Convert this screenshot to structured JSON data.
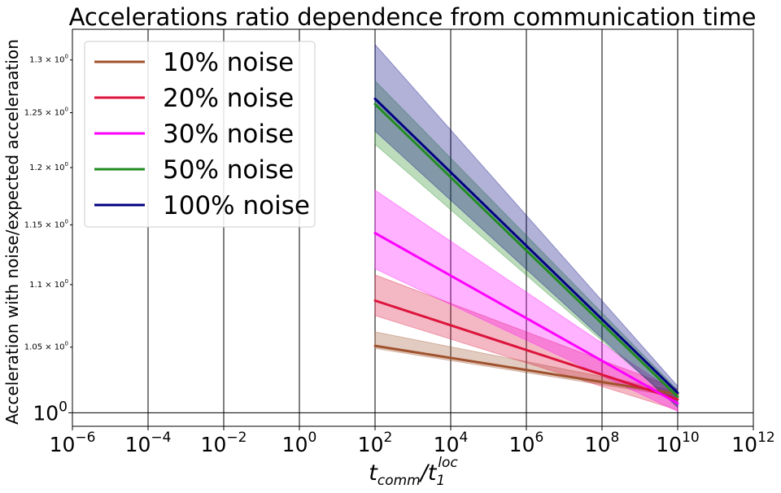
{
  "chart_data": {
    "type": "line",
    "title": "Accelerations ratio dependence from communication time",
    "ylabel": "Acceleration with noise/expected acceleraation",
    "xlabel": {
      "base": "t",
      "sub1": "comm",
      "slash": "/t",
      "sub2": "1",
      "sup": "loc"
    },
    "x_scale": "log",
    "y_scale": "log",
    "xlim_exp": [
      -6,
      12
    ],
    "ylim": [
      0.99,
      1.33
    ],
    "x_ticks": [
      {
        "base": "10",
        "exp": "−6",
        "value": -6
      },
      {
        "base": "10",
        "exp": "−4",
        "value": -4
      },
      {
        "base": "10",
        "exp": "−2",
        "value": -2
      },
      {
        "base": "10",
        "exp": "0",
        "value": 0
      },
      {
        "base": "10",
        "exp": "2",
        "value": 2
      },
      {
        "base": "10",
        "exp": "4",
        "value": 4
      },
      {
        "base": "10",
        "exp": "6",
        "value": 6
      },
      {
        "base": "10",
        "exp": "8",
        "value": 8
      },
      {
        "base": "10",
        "exp": "10",
        "value": 10
      },
      {
        "base": "10",
        "exp": "12",
        "value": 12
      }
    ],
    "y_ticks": [
      {
        "mant": "1.3 × 10",
        "exp": "0",
        "value": 1.3
      },
      {
        "mant": "1.25 × 10",
        "exp": "0",
        "value": 1.25
      },
      {
        "mant": "1.2 × 10",
        "exp": "0",
        "value": 1.2
      },
      {
        "mant": "1.15 × 10",
        "exp": "0",
        "value": 1.15
      },
      {
        "mant": "1.1 × 10",
        "exp": "0",
        "value": 1.1
      },
      {
        "mant": "1.05 × 10",
        "exp": "0",
        "value": 1.05
      }
    ],
    "y_major_tick": {
      "base": "10",
      "exp": "0",
      "value": 1.0
    },
    "grid": "x-major",
    "legend": "top-left",
    "x": [
      100,
      10000000000
    ],
    "series": [
      {
        "name": "10% noise",
        "color": "#a0522d",
        "values": [
          1.051,
          1.014
        ],
        "lower": [
          1.049,
          1.012
        ],
        "upper": [
          1.062,
          1.016
        ]
      },
      {
        "name": "20% noise",
        "color": "#dc143c",
        "values": [
          1.087,
          1.01
        ],
        "lower": [
          1.075,
          1.002
        ],
        "upper": [
          1.108,
          1.018
        ]
      },
      {
        "name": "30% noise",
        "color": "#ff00ff",
        "values": [
          1.143,
          1.007
        ],
        "lower": [
          1.113,
          1.001
        ],
        "upper": [
          1.18,
          1.014
        ]
      },
      {
        "name": "50% noise",
        "color": "#228b22",
        "values": [
          1.258,
          1.012
        ],
        "lower": [
          1.221,
          1.005
        ],
        "upper": [
          1.28,
          1.017
        ]
      },
      {
        "name": "100% noise",
        "color": "#000080",
        "values": [
          1.263,
          1.015
        ],
        "lower": [
          1.233,
          1.004
        ],
        "upper": [
          1.315,
          1.02
        ]
      }
    ]
  }
}
